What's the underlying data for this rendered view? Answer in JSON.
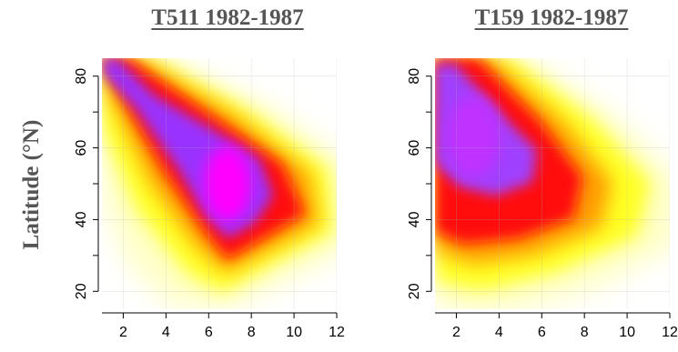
{
  "chart_data": [
    {
      "type": "heatmap",
      "title": "T511 1982-1987",
      "xlabel": "",
      "ylabel": "Latitude (°N)",
      "xlim": [
        1,
        12
      ],
      "ylim": [
        15,
        85
      ],
      "x_ticks": [
        2,
        4,
        6,
        8,
        10,
        12
      ],
      "y_ticks": [
        20,
        40,
        60,
        80
      ],
      "grid": true,
      "color_scale": [
        "#ffffff",
        "#ffff00",
        "#ff0000",
        "#9933ff",
        "#ff00ff"
      ],
      "description_peak": [
        6.8,
        50
      ]
    },
    {
      "type": "heatmap",
      "title": "T159 1982-1987",
      "xlabel": "",
      "ylabel": "",
      "xlim": [
        1,
        12
      ],
      "ylim": [
        15,
        85
      ],
      "x_ticks": [
        2,
        4,
        6,
        8,
        10,
        12
      ],
      "y_ticks": [
        20,
        40,
        60,
        80
      ],
      "grid": true,
      "color_scale": [
        "#ffffff",
        "#ffff00",
        "#ff0000",
        "#9933ff",
        "#ff00ff"
      ],
      "description_peak": [
        2,
        60
      ]
    }
  ]
}
